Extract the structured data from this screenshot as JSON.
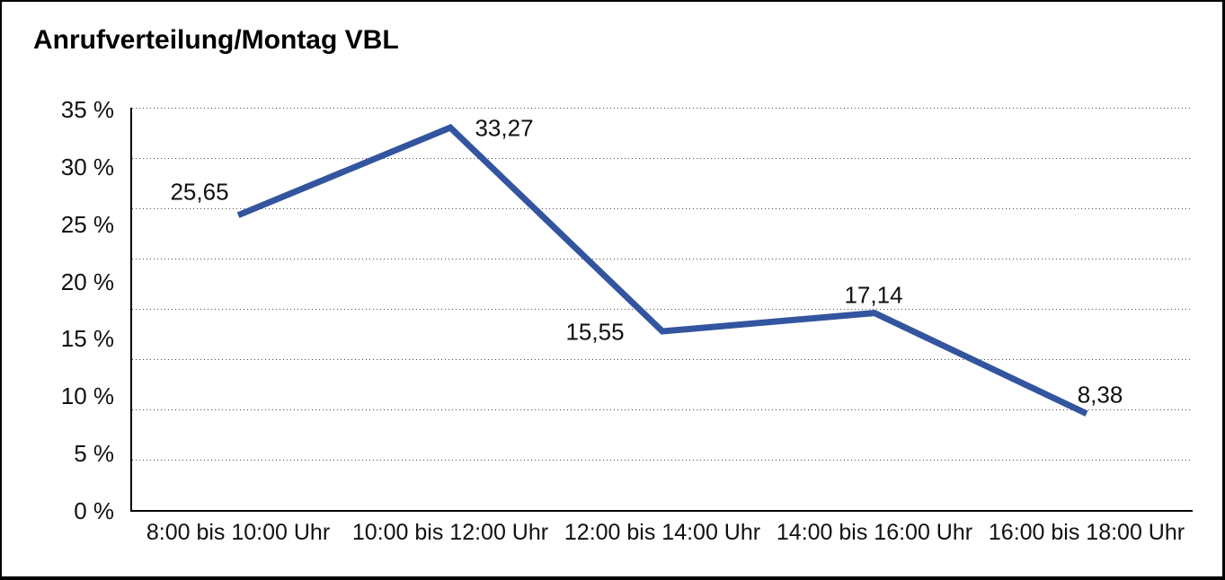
{
  "chart_data": {
    "type": "line",
    "title": "Anrufverteilung/Montag VBL",
    "categories": [
      "8:00 bis 10:00 Uhr",
      "10:00 bis 12:00 Uhr",
      "12:00 bis 14:00 Uhr",
      "14:00 bis 16:00 Uhr",
      "16:00 bis 18:00 Uhr"
    ],
    "values": [
      25.65,
      33.27,
      15.55,
      17.14,
      8.38
    ],
    "point_labels": [
      "25,65",
      "33,27",
      "15,55",
      "17,14",
      "8,38"
    ],
    "ytick_labels": [
      "35 %",
      "30 %",
      "25 %",
      "20 %",
      "15 %",
      "10 %",
      "5 %",
      "0 %"
    ],
    "ylim": [
      0,
      35
    ],
    "xlabel": "",
    "ylabel": "",
    "legend": "none",
    "grid": "horizontal-dotted",
    "gridline_count": 9,
    "line_color": "#33549E",
    "axis_color": "#000000",
    "text_color": "#111111"
  }
}
